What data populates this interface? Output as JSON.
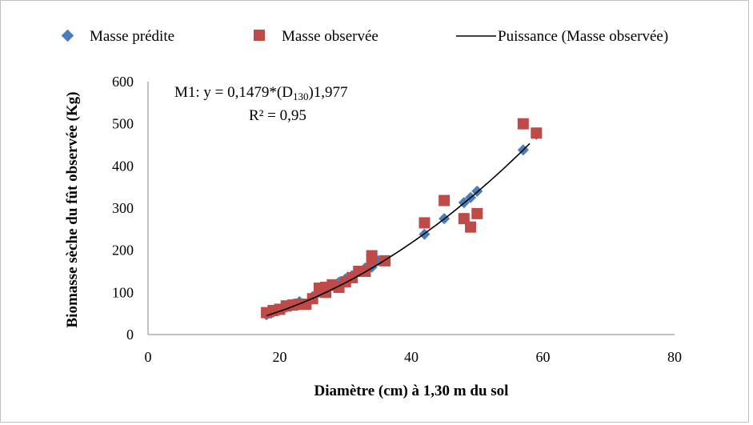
{
  "chart_data": {
    "type": "scatter",
    "legend": [
      {
        "label": "Masse prédite",
        "marker": "diamond",
        "color": "#4A7EBB"
      },
      {
        "label": "Masse observée",
        "marker": "square",
        "color": "#BE4B48"
      },
      {
        "label": "Puissance (Masse observée)",
        "marker": "line",
        "color": "#000000"
      }
    ],
    "legend_position": "top",
    "xlabel": "Diamètre (cm) à 1,30 m du sol",
    "ylabel": "Biomasse sèche du fût observée (Kg)",
    "xlim": [
      0,
      80
    ],
    "ylim": [
      0,
      600
    ],
    "xticks": [
      0,
      20,
      40,
      60,
      80
    ],
    "yticks": [
      0,
      100,
      200,
      300,
      400,
      500,
      600
    ],
    "grid": false,
    "annotation": {
      "line1_prefix": "M1: y = 0,1479*(D",
      "line1_sub": "130",
      "line1_suffix": ")1,977",
      "line2": "R² = 0,95"
    },
    "trend": {
      "coef": 0.1479,
      "exp": 1.977,
      "x_range": [
        18,
        58
      ]
    },
    "series": [
      {
        "name": "Masse prédite",
        "color": "#4A7EBB",
        "points": [
          [
            18,
            47
          ],
          [
            19,
            53
          ],
          [
            20,
            58
          ],
          [
            21,
            65
          ],
          [
            22,
            72
          ],
          [
            23,
            78
          ],
          [
            25,
            90
          ],
          [
            26,
            100
          ],
          [
            27,
            108
          ],
          [
            28,
            116
          ],
          [
            29,
            124
          ],
          [
            30,
            132
          ],
          [
            31,
            140
          ],
          [
            32,
            150
          ],
          [
            33,
            158
          ],
          [
            34,
            160
          ],
          [
            35,
            175
          ],
          [
            42,
            238
          ],
          [
            45,
            275
          ],
          [
            48,
            313
          ],
          [
            49,
            325
          ],
          [
            50,
            340
          ],
          [
            57,
            438
          ],
          [
            59,
            475
          ]
        ]
      },
      {
        "name": "Masse observée",
        "color": "#BE4B48",
        "points": [
          [
            18,
            52
          ],
          [
            19,
            57
          ],
          [
            20,
            60
          ],
          [
            21,
            68
          ],
          [
            22,
            70
          ],
          [
            23,
            72
          ],
          [
            24,
            72
          ],
          [
            25,
            85
          ],
          [
            26,
            110
          ],
          [
            27,
            100
          ],
          [
            27,
            112
          ],
          [
            28,
            118
          ],
          [
            29,
            112
          ],
          [
            30,
            125
          ],
          [
            31,
            135
          ],
          [
            32,
            150
          ],
          [
            33,
            150
          ],
          [
            34,
            187
          ],
          [
            34,
            178
          ],
          [
            36,
            175
          ],
          [
            42,
            265
          ],
          [
            45,
            318
          ],
          [
            48,
            275
          ],
          [
            49,
            255
          ],
          [
            50,
            287
          ],
          [
            57,
            500
          ],
          [
            59,
            478
          ]
        ]
      }
    ]
  }
}
